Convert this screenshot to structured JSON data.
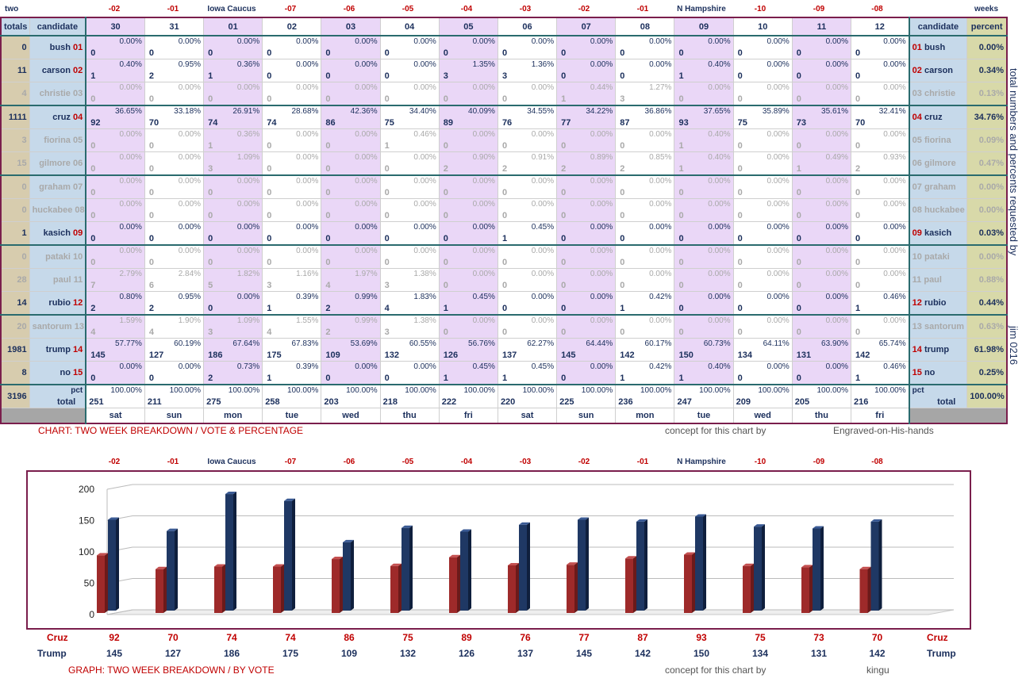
{
  "top_labels": {
    "left": "two",
    "right": "weeks"
  },
  "markers": [
    "-02",
    "-01",
    "Iowa Caucus",
    "-07",
    "-06",
    "-05",
    "-04",
    "-03",
    "-02",
    "-01",
    "N Hampshire",
    "-10",
    "-09",
    "-08"
  ],
  "header": {
    "totals": "totals",
    "candidate": "candidate",
    "candidate_right": "candidate",
    "percent": "percent"
  },
  "dates": [
    "30",
    "31",
    "01",
    "02",
    "03",
    "04",
    "05",
    "06",
    "07",
    "08",
    "09",
    "10",
    "11",
    "12"
  ],
  "weekdays": [
    "sat",
    "sun",
    "mon",
    "tue",
    "wed",
    "thu",
    "fri",
    "sat",
    "sun",
    "mon",
    "tue",
    "wed",
    "thu",
    "fri"
  ],
  "candidates": [
    {
      "name": "bush",
      "num": "01",
      "total": "0",
      "pct": "0.00%",
      "dim": false,
      "votes": [
        "0",
        "0",
        "0",
        "0",
        "0",
        "0",
        "0",
        "0",
        "0",
        "0",
        "0",
        "0",
        "0",
        "0"
      ],
      "pcts": [
        "0.00%",
        "0.00%",
        "0.00%",
        "0.00%",
        "0.00%",
        "0.00%",
        "0.00%",
        "0.00%",
        "0.00%",
        "0.00%",
        "0.00%",
        "0.00%",
        "0.00%",
        "0.00%"
      ]
    },
    {
      "name": "carson",
      "num": "02",
      "total": "11",
      "pct": "0.34%",
      "dim": false,
      "votes": [
        "1",
        "2",
        "1",
        "0",
        "0",
        "0",
        "3",
        "3",
        "0",
        "0",
        "1",
        "0",
        "0",
        "0"
      ],
      "pcts": [
        "0.40%",
        "0.95%",
        "0.36%",
        "0.00%",
        "0.00%",
        "0.00%",
        "1.35%",
        "1.36%",
        "0.00%",
        "0.00%",
        "0.40%",
        "0.00%",
        "0.00%",
        "0.00%"
      ]
    },
    {
      "name": "christie",
      "num": "03",
      "total": "4",
      "pct": "0.13%",
      "dim": true,
      "votes": [
        "0",
        "0",
        "0",
        "0",
        "0",
        "0",
        "0",
        "0",
        "1",
        "3",
        "0",
        "0",
        "0",
        "0"
      ],
      "pcts": [
        "0.00%",
        "0.00%",
        "0.00%",
        "0.00%",
        "0.00%",
        "0.00%",
        "0.00%",
        "0.00%",
        "0.44%",
        "1.27%",
        "0.00%",
        "0.00%",
        "0.00%",
        "0.00%"
      ]
    },
    {
      "name": "cruz",
      "num": "04",
      "total": "1111",
      "pct": "34.76%",
      "dim": false,
      "votes": [
        "92",
        "70",
        "74",
        "74",
        "86",
        "75",
        "89",
        "76",
        "77",
        "87",
        "93",
        "75",
        "73",
        "70"
      ],
      "pcts": [
        "36.65%",
        "33.18%",
        "26.91%",
        "28.68%",
        "42.36%",
        "34.40%",
        "40.09%",
        "34.55%",
        "34.22%",
        "36.86%",
        "37.65%",
        "35.89%",
        "35.61%",
        "32.41%"
      ]
    },
    {
      "name": "fiorina",
      "num": "05",
      "total": "3",
      "pct": "0.09%",
      "dim": true,
      "votes": [
        "0",
        "0",
        "1",
        "0",
        "0",
        "1",
        "0",
        "0",
        "0",
        "0",
        "1",
        "0",
        "0",
        "0"
      ],
      "pcts": [
        "0.00%",
        "0.00%",
        "0.36%",
        "0.00%",
        "0.00%",
        "0.46%",
        "0.00%",
        "0.00%",
        "0.00%",
        "0.00%",
        "0.40%",
        "0.00%",
        "0.00%",
        "0.00%"
      ]
    },
    {
      "name": "gilmore",
      "num": "06",
      "total": "15",
      "pct": "0.47%",
      "dim": true,
      "votes": [
        "0",
        "0",
        "3",
        "0",
        "0",
        "0",
        "2",
        "2",
        "2",
        "2",
        "1",
        "0",
        "1",
        "2"
      ],
      "pcts": [
        "0.00%",
        "0.00%",
        "1.09%",
        "0.00%",
        "0.00%",
        "0.00%",
        "0.90%",
        "0.91%",
        "0.89%",
        "0.85%",
        "0.40%",
        "0.00%",
        "0.49%",
        "0.93%"
      ]
    },
    {
      "name": "graham",
      "num": "07",
      "total": "0",
      "pct": "0.00%",
      "dim": true,
      "votes": [
        "0",
        "0",
        "0",
        "0",
        "0",
        "0",
        "0",
        "0",
        "0",
        "0",
        "0",
        "0",
        "0",
        "0"
      ],
      "pcts": [
        "0.00%",
        "0.00%",
        "0.00%",
        "0.00%",
        "0.00%",
        "0.00%",
        "0.00%",
        "0.00%",
        "0.00%",
        "0.00%",
        "0.00%",
        "0.00%",
        "0.00%",
        "0.00%"
      ]
    },
    {
      "name": "huckabee",
      "num": "08",
      "total": "0",
      "pct": "0.00%",
      "dim": true,
      "votes": [
        "0",
        "0",
        "0",
        "0",
        "0",
        "0",
        "0",
        "0",
        "0",
        "0",
        "0",
        "0",
        "0",
        "0"
      ],
      "pcts": [
        "0.00%",
        "0.00%",
        "0.00%",
        "0.00%",
        "0.00%",
        "0.00%",
        "0.00%",
        "0.00%",
        "0.00%",
        "0.00%",
        "0.00%",
        "0.00%",
        "0.00%",
        "0.00%"
      ]
    },
    {
      "name": "kasich",
      "num": "09",
      "total": "1",
      "pct": "0.03%",
      "dim": false,
      "votes": [
        "0",
        "0",
        "0",
        "0",
        "0",
        "0",
        "0",
        "1",
        "0",
        "0",
        "0",
        "0",
        "0",
        "0"
      ],
      "pcts": [
        "0.00%",
        "0.00%",
        "0.00%",
        "0.00%",
        "0.00%",
        "0.00%",
        "0.00%",
        "0.45%",
        "0.00%",
        "0.00%",
        "0.00%",
        "0.00%",
        "0.00%",
        "0.00%"
      ]
    },
    {
      "name": "pataki",
      "num": "10",
      "total": "0",
      "pct": "0.00%",
      "dim": true,
      "votes": [
        "0",
        "0",
        "0",
        "0",
        "0",
        "0",
        "0",
        "0",
        "0",
        "0",
        "0",
        "0",
        "0",
        "0"
      ],
      "pcts": [
        "0.00%",
        "0.00%",
        "0.00%",
        "0.00%",
        "0.00%",
        "0.00%",
        "0.00%",
        "0.00%",
        "0.00%",
        "0.00%",
        "0.00%",
        "0.00%",
        "0.00%",
        "0.00%"
      ]
    },
    {
      "name": "paul",
      "num": "11",
      "total": "28",
      "pct": "0.88%",
      "dim": true,
      "votes": [
        "7",
        "6",
        "5",
        "3",
        "4",
        "3",
        "0",
        "0",
        "0",
        "0",
        "0",
        "0",
        "0",
        "0"
      ],
      "pcts": [
        "2.79%",
        "2.84%",
        "1.82%",
        "1.16%",
        "1.97%",
        "1.38%",
        "0.00%",
        "0.00%",
        "0.00%",
        "0.00%",
        "0.00%",
        "0.00%",
        "0.00%",
        "0.00%"
      ]
    },
    {
      "name": "rubio",
      "num": "12",
      "total": "14",
      "pct": "0.44%",
      "dim": false,
      "votes": [
        "2",
        "2",
        "0",
        "1",
        "2",
        "4",
        "1",
        "0",
        "0",
        "1",
        "0",
        "0",
        "0",
        "1"
      ],
      "pcts": [
        "0.80%",
        "0.95%",
        "0.00%",
        "0.39%",
        "0.99%",
        "1.83%",
        "0.45%",
        "0.00%",
        "0.00%",
        "0.42%",
        "0.00%",
        "0.00%",
        "0.00%",
        "0.46%"
      ]
    },
    {
      "name": "santorum",
      "num": "13",
      "total": "20",
      "pct": "0.63%",
      "dim": true,
      "votes": [
        "4",
        "4",
        "3",
        "4",
        "2",
        "3",
        "0",
        "0",
        "0",
        "0",
        "0",
        "0",
        "0",
        "0"
      ],
      "pcts": [
        "1.59%",
        "1.90%",
        "1.09%",
        "1.55%",
        "0.99%",
        "1.38%",
        "0.00%",
        "0.00%",
        "0.00%",
        "0.00%",
        "0.00%",
        "0.00%",
        "0.00%",
        "0.00%"
      ]
    },
    {
      "name": "trump",
      "num": "14",
      "total": "1981",
      "pct": "61.98%",
      "dim": false,
      "votes": [
        "145",
        "127",
        "186",
        "175",
        "109",
        "132",
        "126",
        "137",
        "145",
        "142",
        "150",
        "134",
        "131",
        "142"
      ],
      "pcts": [
        "57.77%",
        "60.19%",
        "67.64%",
        "67.83%",
        "53.69%",
        "60.55%",
        "56.76%",
        "62.27%",
        "64.44%",
        "60.17%",
        "60.73%",
        "64.11%",
        "63.90%",
        "65.74%"
      ]
    },
    {
      "name": "no",
      "num": "15",
      "total": "8",
      "pct": "0.25%",
      "dim": false,
      "votes": [
        "0",
        "0",
        "2",
        "1",
        "0",
        "0",
        "1",
        "1",
        "0",
        "1",
        "1",
        "0",
        "0",
        "1"
      ],
      "pcts": [
        "0.00%",
        "0.00%",
        "0.73%",
        "0.39%",
        "0.00%",
        "0.00%",
        "0.45%",
        "0.45%",
        "0.00%",
        "0.42%",
        "0.40%",
        "0.00%",
        "0.00%",
        "0.46%"
      ]
    }
  ],
  "totals_row": {
    "grand_total": "3196",
    "label_pct": "pct",
    "label_total": "total",
    "pct_right": "100.00%",
    "day_totals": [
      "251",
      "211",
      "275",
      "258",
      "203",
      "218",
      "222",
      "220",
      "225",
      "236",
      "247",
      "209",
      "205",
      "216"
    ],
    "day_pct": "100.00%"
  },
  "side_text": {
    "line1": "total numbers and percents requested by",
    "line2": "jim 0216"
  },
  "footer_table": {
    "caption": "CHART: TWO WEEK BREAKDOWN / VOTE & PERCENTAGE",
    "concept": "concept for this chart by",
    "author": "Engraved-on-His-hands"
  },
  "footer_graph": {
    "caption": "GRAPH: TWO WEEK BREAKDOWN / BY VOTE",
    "concept": "concept for this chart by",
    "author": "kingu"
  },
  "chart_data": {
    "type": "bar",
    "categories": [
      "-02",
      "-01",
      "Iowa Caucus",
      "-07",
      "-06",
      "-05",
      "-04",
      "-03",
      "-02",
      "-01",
      "N Hampshire",
      "-10",
      "-09",
      "-08"
    ],
    "series": [
      {
        "name": "Cruz",
        "values": [
          92,
          70,
          74,
          74,
          86,
          75,
          89,
          76,
          77,
          87,
          93,
          75,
          73,
          70
        ],
        "color": "#9e2a2a"
      },
      {
        "name": "Trump",
        "values": [
          145,
          127,
          186,
          175,
          109,
          132,
          126,
          137,
          145,
          142,
          150,
          134,
          131,
          142
        ],
        "color": "#1f3864"
      }
    ],
    "yticks": [
      "0",
      "50",
      "100",
      "150",
      "200"
    ],
    "ylim": [
      0,
      200
    ],
    "grid": true
  }
}
